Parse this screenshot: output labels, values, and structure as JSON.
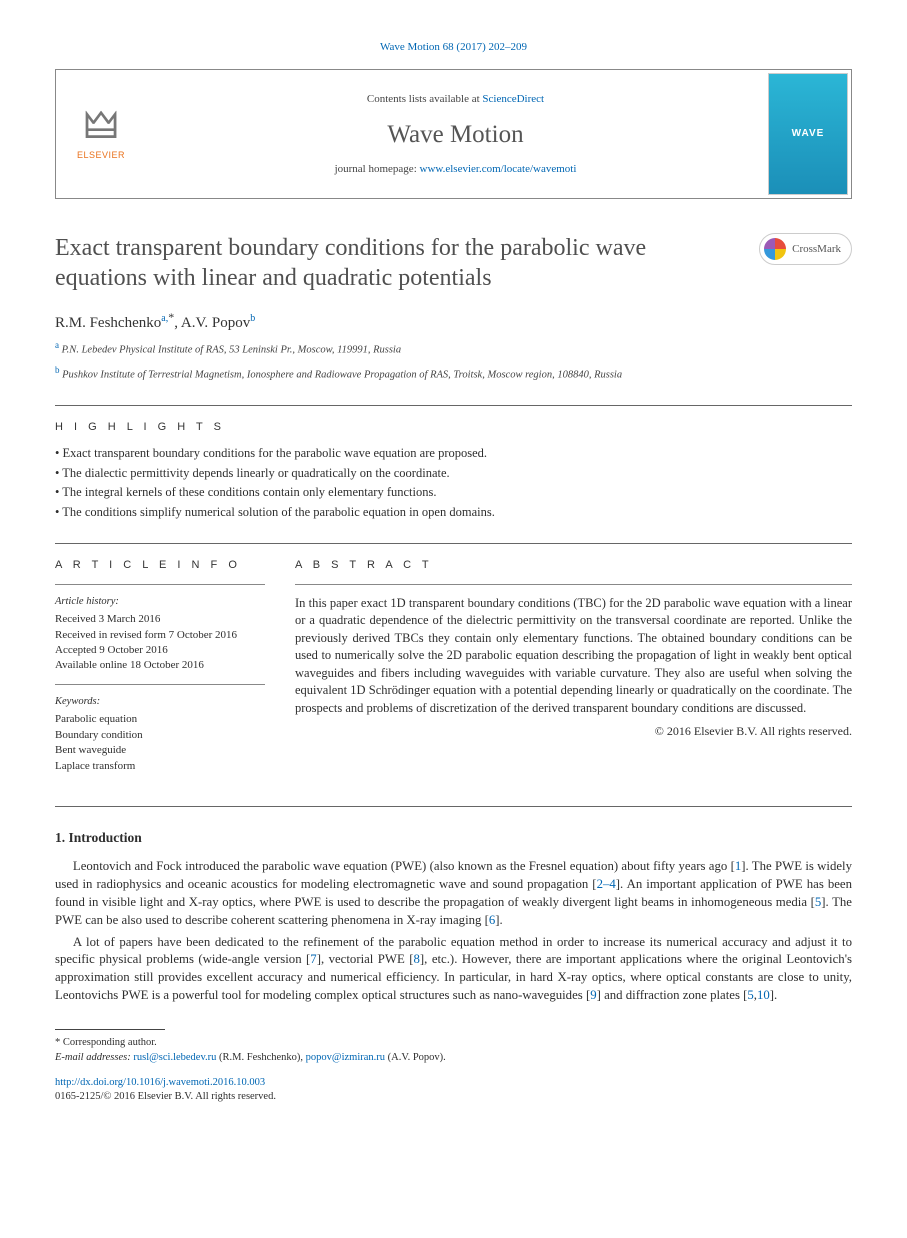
{
  "citation": "Wave Motion 68 (2017) 202–209",
  "header": {
    "publisher": "ELSEVIER",
    "contents_prefix": "Contents lists available at ",
    "contents_link": "ScienceDirect",
    "journal": "Wave Motion",
    "homepage_prefix": "journal homepage: ",
    "homepage_url": "www.elsevier.com/locate/wavemoti",
    "cover_text": "WAVE"
  },
  "title": "Exact transparent boundary conditions for the parabolic wave equations with linear and quadratic potentials",
  "crossmark": "CrossMark",
  "authors": [
    {
      "name": "R.M. Feshchenko",
      "sup": "a,",
      "corr": "*"
    },
    {
      "name": "A.V. Popov",
      "sup": "b",
      "corr": ""
    }
  ],
  "authors_joined": "R.M. Feshchenko",
  "author2": "A.V. Popov",
  "affiliations": {
    "a": "P.N. Lebedev Physical Institute of RAS, 53 Leninski Pr., Moscow, 119991, Russia",
    "b": "Pushkov Institute of Terrestrial Magnetism, Ionosphere and Radiowave Propagation of RAS, Troitsk, Moscow region, 108840, Russia"
  },
  "highlights_label": "H I G H L I G H T S",
  "highlights": [
    "Exact transparent boundary conditions for the parabolic wave equation are proposed.",
    "The dialectic permittivity depends linearly or quadratically on the coordinate.",
    "The integral kernels of these conditions contain only elementary functions.",
    "The conditions simplify numerical solution of the parabolic equation in open domains."
  ],
  "article_info_label": "A R T I C L E   I N F O",
  "abstract_label": "A B S T R A C T",
  "history_head": "Article history:",
  "history": [
    "Received 3 March 2016",
    "Received in revised form 7 October 2016",
    "Accepted 9 October 2016",
    "Available online 18 October 2016"
  ],
  "keywords_head": "Keywords:",
  "keywords": [
    "Parabolic equation",
    "Boundary condition",
    "Bent waveguide",
    "Laplace transform"
  ],
  "abstract": "In this paper exact 1D transparent boundary conditions (TBC) for the 2D parabolic wave equation with a linear or a quadratic dependence of the dielectric permittivity on the transversal coordinate are reported. Unlike the previously derived TBCs they contain only elementary functions. The obtained boundary conditions can be used to numerically solve the 2D parabolic equation describing the propagation of light in weakly bent optical waveguides and fibers including waveguides with variable curvature. They also are useful when solving the equivalent 1D Schrödinger equation with a potential depending linearly or quadratically on the coordinate. The prospects and problems of discretization of the derived transparent boundary conditions are discussed.",
  "copyright": "© 2016 Elsevier B.V. All rights reserved.",
  "intro_head": "1.  Introduction",
  "intro_p1_a": "Leontovich and Fock introduced the parabolic wave equation (PWE) (also known as the Fresnel equation) about fifty years ago [",
  "intro_p1_r1": "1",
  "intro_p1_b": "]. The PWE is widely used in radiophysics and oceanic acoustics for modeling electromagnetic wave and sound propagation [",
  "intro_p1_r2": "2–4",
  "intro_p1_c": "]. An important application of PWE has been found in visible light and X-ray optics, where PWE is used to describe the propagation of weakly divergent light beams in inhomogeneous media [",
  "intro_p1_r3": "5",
  "intro_p1_d": "]. The PWE can be also used to describe coherent scattering phenomena in X-ray imaging [",
  "intro_p1_r4": "6",
  "intro_p1_e": "].",
  "intro_p2_a": "A lot of papers have been dedicated to the refinement of the parabolic equation method in order to increase its numerical accuracy and adjust it to specific physical problems (wide-angle version [",
  "intro_p2_r1": "7",
  "intro_p2_b": "], vectorial PWE [",
  "intro_p2_r2": "8",
  "intro_p2_c": "], etc.). However, there are important applications where the original Leontovich's approximation still provides excellent accuracy and numerical efficiency. In particular, in hard X-ray optics, where optical constants are close to unity, Leontovichs PWE is a powerful tool for modeling complex optical structures such as nano-waveguides [",
  "intro_p2_r3": "9",
  "intro_p2_d": "] and diffraction zone plates [",
  "intro_p2_r4": "5",
  "intro_p2_e": ",",
  "intro_p2_r5": "10",
  "intro_p2_f": "].",
  "corr_label": "Corresponding author.",
  "email_label": "E-mail addresses:",
  "email1": "rusl@sci.lebedev.ru",
  "email1_who": " (R.M. Feshchenko), ",
  "email2": "popov@izmiran.ru",
  "email2_who": " (A.V. Popov).",
  "doi": "http://dx.doi.org/10.1016/j.wavemoti.2016.10.003",
  "issn_line": "0165-2125/© 2016 Elsevier B.V. All rights reserved."
}
